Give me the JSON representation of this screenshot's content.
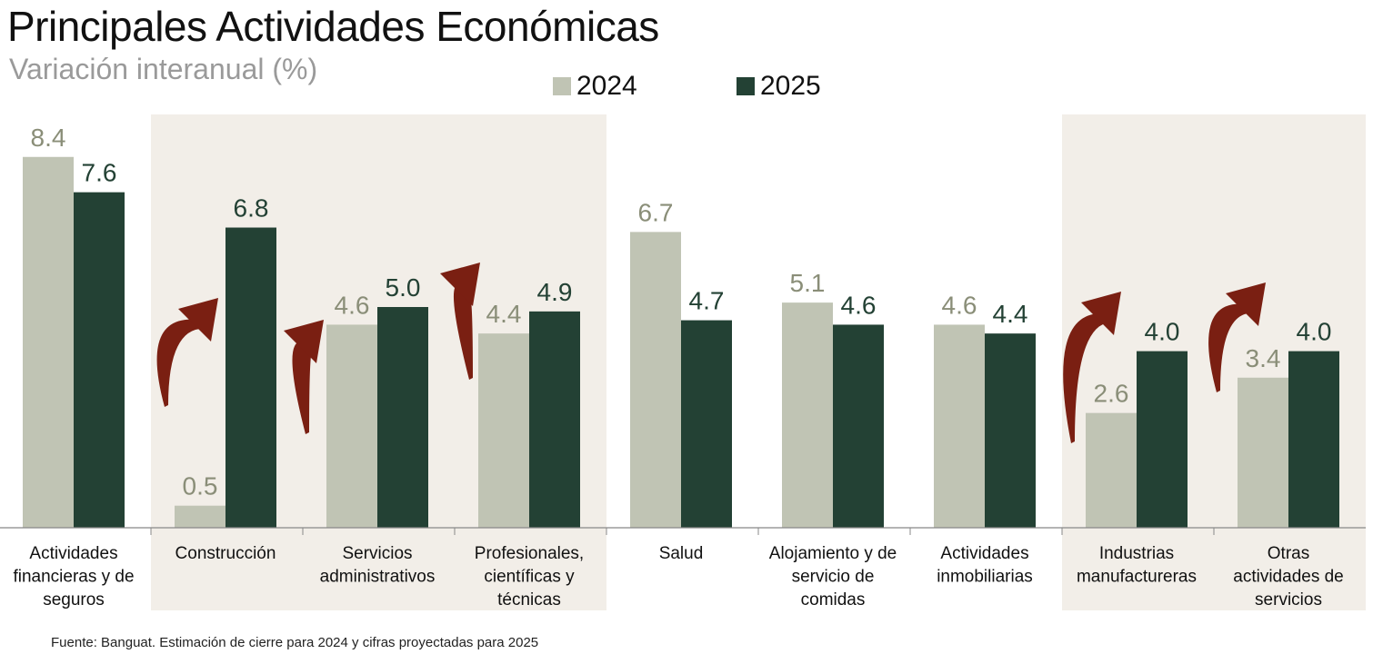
{
  "title": "Principales Actividades Económicas",
  "subtitle": "Variación interanual (%)",
  "source": "Fuente: Banguat. Estimación de cierre para 2024 y cifras proyectadas para 2025",
  "colors": {
    "series_2024": "#c0c4b4",
    "series_2025": "#234134",
    "label_2024": "#8a8e78",
    "label_2025": "#234134",
    "highlight_bg": "#f2eee8",
    "arrow": "#7a1f12",
    "axis": "#888888"
  },
  "chart_data": {
    "type": "bar",
    "categories": [
      [
        "Actividades",
        "financieras y de",
        "seguros"
      ],
      [
        "Construcción"
      ],
      [
        "Servicios",
        "administrativos"
      ],
      [
        "Profesionales,",
        "científicas y",
        "técnicas"
      ],
      [
        "Salud"
      ],
      [
        "Alojamiento y de",
        "servicio de",
        "comidas"
      ],
      [
        "Actividades",
        "inmobiliarias"
      ],
      [
        "Industrias",
        "manufactureras"
      ],
      [
        "Otras",
        "actividades de",
        "servicios"
      ]
    ],
    "series": [
      {
        "name": "2024",
        "values": [
          8.4,
          0.5,
          4.6,
          4.4,
          6.7,
          5.1,
          4.6,
          2.6,
          3.4
        ]
      },
      {
        "name": "2025",
        "values": [
          7.6,
          6.8,
          5.0,
          4.9,
          4.7,
          4.6,
          4.4,
          4.0,
          4.0
        ]
      }
    ],
    "data_labels": [
      [
        "8.4",
        "0.5",
        "4.6",
        "4.4",
        "6.7",
        "5.1",
        "4.6",
        "2.6",
        "3.4"
      ],
      [
        "7.6",
        "6.8",
        "5.0",
        "4.9",
        "4.7",
        "4.6",
        "4.4",
        "4.0",
        "4.0"
      ]
    ],
    "ylim": [
      0,
      10
    ],
    "highlighted_categories": [
      1,
      2,
      3,
      7,
      8
    ],
    "arrow_categories": [
      1,
      2,
      3,
      7,
      8
    ],
    "legend_placement": "top-center",
    "grid": false
  }
}
